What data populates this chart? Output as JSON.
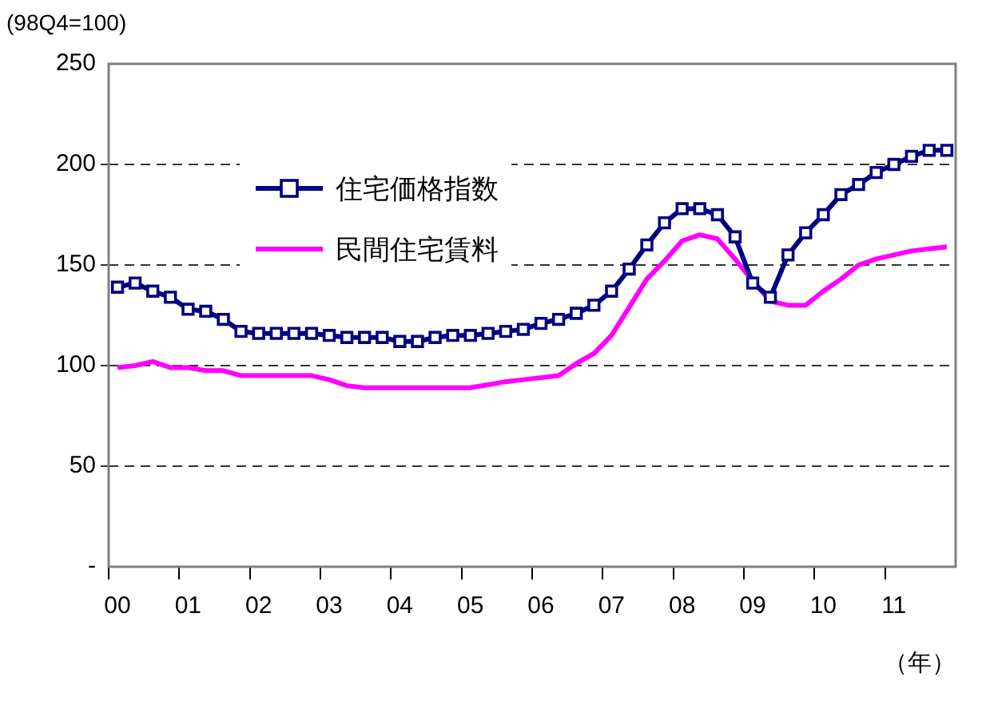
{
  "chart_data": {
    "type": "line",
    "ylabel": "(98Q4=100)",
    "xlabel": "（年）",
    "categories": [
      "00",
      null,
      null,
      null,
      "01",
      null,
      null,
      null,
      "02",
      null,
      null,
      null,
      "03",
      null,
      null,
      null,
      "04",
      null,
      null,
      null,
      "05",
      null,
      null,
      null,
      "06",
      null,
      null,
      null,
      "07",
      null,
      null,
      null,
      "08",
      null,
      null,
      null,
      "09",
      null,
      null,
      null,
      "10",
      null,
      null,
      null,
      "11",
      null,
      null,
      null
    ],
    "ylim": [
      0,
      250
    ],
    "yticks": [
      {
        "value": 0,
        "label": "-"
      },
      50,
      100,
      150,
      200,
      250
    ],
    "grid": "y",
    "legend": "top left",
    "series": [
      {
        "name": "住宅価格指数",
        "color": "#000080",
        "marker": "square",
        "values": [
          139,
          141,
          137,
          134,
          128,
          127,
          123,
          117,
          116,
          116,
          116,
          116,
          115,
          114,
          114,
          114,
          112,
          112,
          114,
          115,
          115,
          116,
          117,
          118,
          121,
          123,
          126,
          130,
          137,
          148,
          160,
          171,
          178,
          178,
          175,
          164,
          141,
          134,
          155,
          166,
          175,
          185,
          190,
          196,
          200,
          204,
          207,
          207
        ]
      },
      {
        "name": "民間住宅賃料",
        "color": "#ff00ff",
        "marker": "none",
        "values": [
          99,
          100,
          102,
          99,
          99,
          97.5,
          97.5,
          95,
          95,
          95,
          95,
          95,
          93,
          90,
          89,
          89,
          89,
          89,
          89,
          89,
          89,
          90.5,
          92,
          93,
          94,
          95,
          101,
          106,
          115,
          129,
          143,
          152,
          162,
          165,
          163,
          153,
          142,
          132,
          130,
          130,
          137,
          143,
          150,
          153,
          155,
          157,
          158,
          159
        ]
      }
    ]
  }
}
